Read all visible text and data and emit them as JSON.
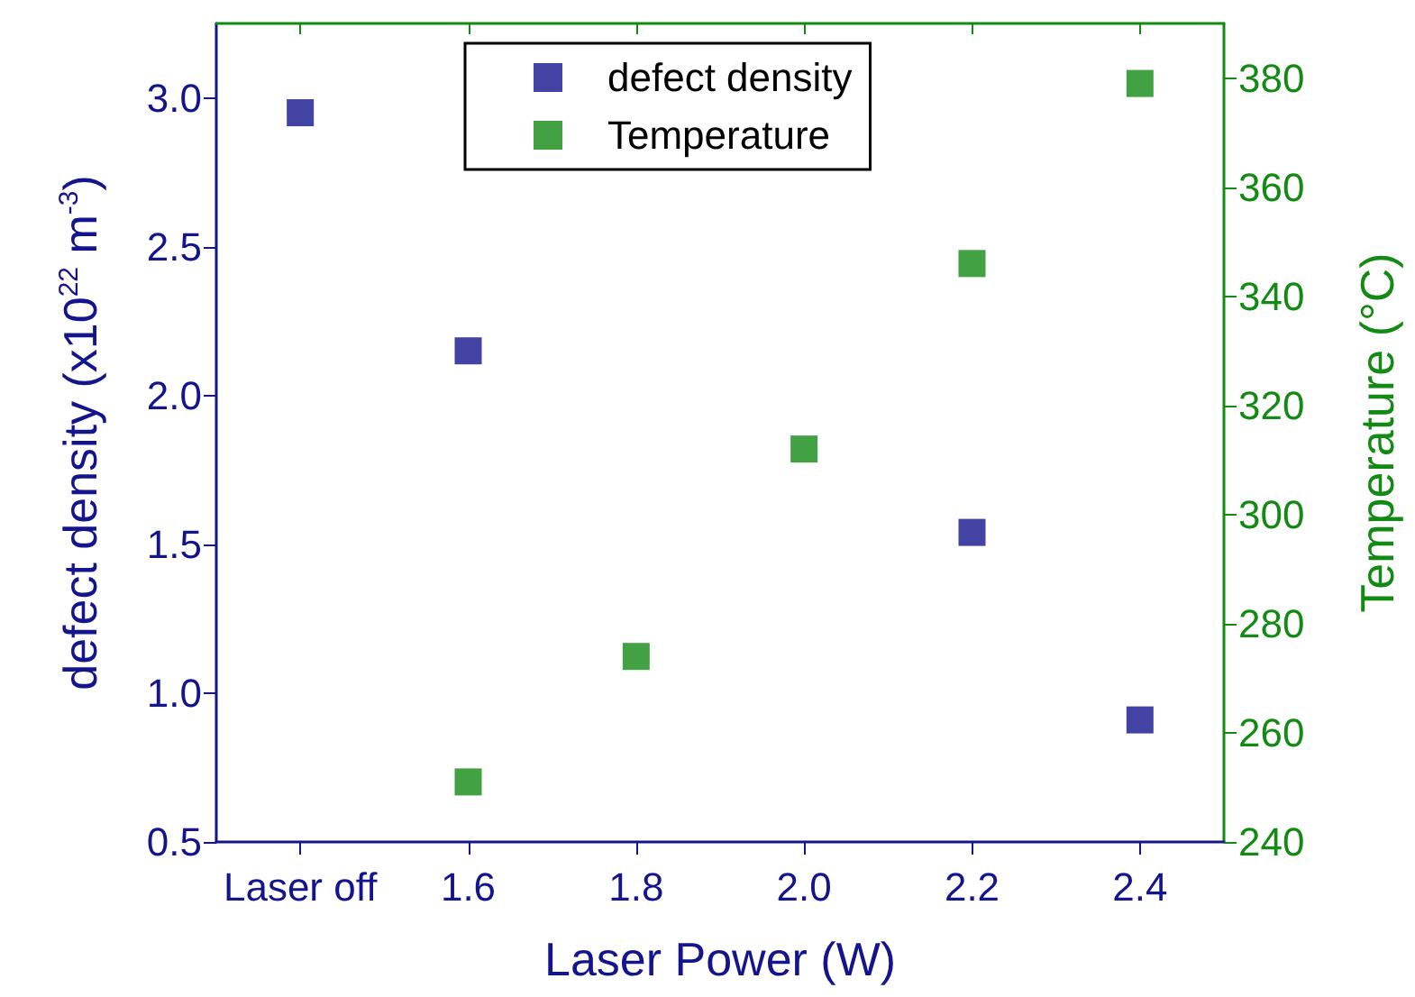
{
  "chart_data": {
    "type": "scatter",
    "xlabel": "Laser Power (W)",
    "ylabel": "defect density (x10$^{22}$ m$^{-3}$)",
    "y2label": "Temperature (°C)",
    "categories": [
      "Laser off",
      "1.6",
      "1.8",
      "2.0",
      "2.2",
      "2.4"
    ],
    "series": [
      {
        "name": "defect density",
        "color": "#14148c",
        "values": [
          2.95,
          2.15,
          null,
          null,
          1.54,
          0.91
        ]
      },
      {
        "name": "Temperature",
        "color": "#138a13",
        "axis": "y2",
        "values": [
          null,
          251,
          274,
          312,
          346,
          379
        ]
      }
    ],
    "ylim": [
      0.5,
      3.25
    ],
    "yticks": [
      0.5,
      {
        "value": 1,
        "label": "1.0"
      },
      1.5,
      {
        "value": 2,
        "label": "2.0"
      },
      2.5,
      {
        "value": 3,
        "label": "3.0"
      }
    ],
    "y2lim": [
      240,
      390
    ],
    "y2ticks": [
      240,
      260,
      280,
      300,
      320,
      340,
      360,
      380
    ],
    "legend": "top",
    "marker": "square",
    "grid": false
  }
}
